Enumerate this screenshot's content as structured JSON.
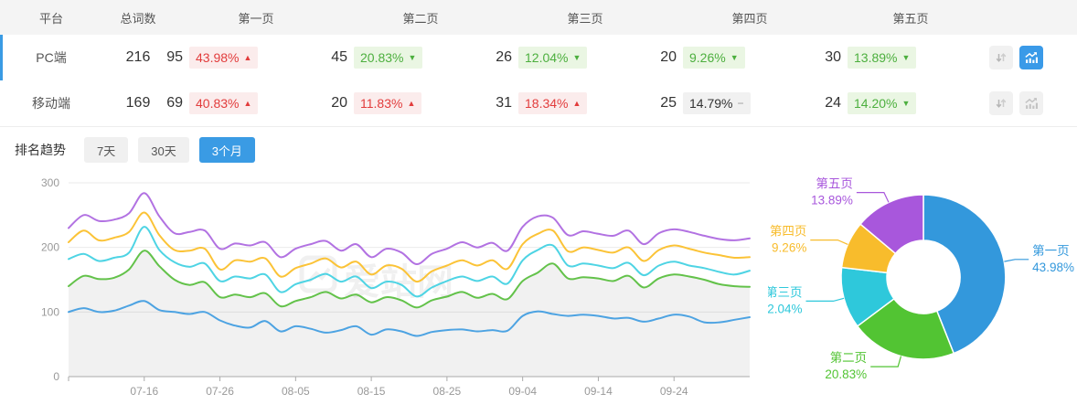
{
  "colors": {
    "accent": "#3A9BE4",
    "up_red": "#E23C3C",
    "down_green": "#4CAF3E",
    "neutral_gray": "#999999"
  },
  "table": {
    "headers": [
      "平台",
      "总词数",
      "第一页",
      "第二页",
      "第三页",
      "第四页",
      "第五页"
    ],
    "rows": [
      {
        "platform": "PC端",
        "total": "216",
        "selected": true,
        "chart_active": true,
        "pages": [
          {
            "count": "95",
            "pct": "43.98%",
            "dir": "up",
            "tone": "red"
          },
          {
            "count": "45",
            "pct": "20.83%",
            "dir": "down",
            "tone": "green"
          },
          {
            "count": "26",
            "pct": "12.04%",
            "dir": "down",
            "tone": "green"
          },
          {
            "count": "20",
            "pct": "9.26%",
            "dir": "down",
            "tone": "green"
          },
          {
            "count": "30",
            "pct": "13.89%",
            "dir": "down",
            "tone": "green"
          }
        ]
      },
      {
        "platform": "移动端",
        "total": "169",
        "selected": false,
        "chart_active": false,
        "pages": [
          {
            "count": "69",
            "pct": "40.83%",
            "dir": "up",
            "tone": "red"
          },
          {
            "count": "20",
            "pct": "11.83%",
            "dir": "up",
            "tone": "red"
          },
          {
            "count": "31",
            "pct": "18.34%",
            "dir": "up",
            "tone": "red"
          },
          {
            "count": "25",
            "pct": "14.79%",
            "dir": "flat",
            "tone": "gray"
          },
          {
            "count": "24",
            "pct": "14.20%",
            "dir": "down",
            "tone": "green"
          }
        ]
      }
    ],
    "icons": {
      "sort": "sort-arrows-icon",
      "trend": "trend-chart-icon"
    }
  },
  "trend": {
    "label": "排名趋势",
    "tabs": [
      {
        "label": "7天",
        "active": false
      },
      {
        "label": "30天",
        "active": false
      },
      {
        "label": "3个月",
        "active": true
      }
    ]
  },
  "watermark": "爱站网",
  "chart_data": [
    {
      "type": "line",
      "title": "排名趋势(3个月)",
      "grid": true,
      "ylim": [
        0,
        300
      ],
      "yticks": [
        0,
        100,
        200,
        300
      ],
      "xticks": [
        "07-16",
        "07-26",
        "08-05",
        "08-15",
        "08-25",
        "09-04",
        "09-14",
        "09-24"
      ],
      "x": [
        "07-06",
        "07-08",
        "07-10",
        "07-12",
        "07-14",
        "07-16",
        "07-18",
        "07-20",
        "07-22",
        "07-24",
        "07-26",
        "07-28",
        "07-30",
        "08-01",
        "08-03",
        "08-05",
        "08-07",
        "08-09",
        "08-11",
        "08-13",
        "08-15",
        "08-17",
        "08-19",
        "08-21",
        "08-23",
        "08-25",
        "08-27",
        "08-29",
        "08-31",
        "09-02",
        "09-04",
        "09-06",
        "09-08",
        "09-10",
        "09-12",
        "09-14",
        "09-16",
        "09-18",
        "09-20",
        "09-22",
        "09-24",
        "09-26",
        "09-28",
        "09-30",
        "10-02",
        "10-04"
      ],
      "series": [
        {
          "name": "第一页",
          "color": "#4DA3E2",
          "area": false,
          "values": [
            100,
            106,
            100,
            102,
            110,
            117,
            103,
            100,
            97,
            100,
            87,
            79,
            76,
            86,
            70,
            78,
            74,
            68,
            72,
            78,
            65,
            73,
            70,
            63,
            69,
            72,
            73,
            70,
            72,
            71,
            94,
            101,
            97,
            94,
            96,
            94,
            90,
            91,
            85,
            90,
            96,
            93,
            84,
            84,
            88,
            92
          ]
        },
        {
          "name": "第二页",
          "color": "#63C24A",
          "area": true,
          "values": [
            140,
            156,
            151,
            153,
            166,
            195,
            171,
            150,
            142,
            146,
            123,
            127,
            123,
            129,
            109,
            117,
            123,
            131,
            121,
            127,
            115,
            123,
            118,
            107,
            118,
            124,
            131,
            122,
            128,
            120,
            148,
            161,
            175,
            152,
            154,
            152,
            148,
            156,
            138,
            152,
            158,
            155,
            150,
            143,
            140,
            139
          ]
        },
        {
          "name": "第三页",
          "color": "#4ED4E4",
          "area": false,
          "values": [
            182,
            190,
            179,
            184,
            192,
            232,
            196,
            177,
            170,
            175,
            148,
            155,
            152,
            158,
            131,
            143,
            150,
            159,
            147,
            155,
            137,
            147,
            142,
            124,
            138,
            148,
            155,
            148,
            155,
            144,
            180,
            196,
            203,
            172,
            175,
            172,
            168,
            176,
            157,
            172,
            178,
            172,
            168,
            162,
            158,
            164
          ]
        },
        {
          "name": "第四页",
          "color": "#FBC337",
          "area": false,
          "values": [
            208,
            226,
            211,
            215,
            224,
            254,
            219,
            196,
            195,
            198,
            166,
            180,
            178,
            183,
            155,
            168,
            175,
            183,
            169,
            178,
            158,
            172,
            167,
            147,
            163,
            172,
            180,
            172,
            180,
            167,
            205,
            221,
            226,
            194,
            200,
            196,
            192,
            200,
            179,
            196,
            203,
            198,
            192,
            188,
            184,
            185
          ]
        },
        {
          "name": "第五页",
          "color": "#B272E2",
          "area": false,
          "values": [
            230,
            250,
            241,
            243,
            253,
            284,
            248,
            222,
            224,
            226,
            198,
            206,
            203,
            208,
            185,
            198,
            205,
            210,
            195,
            205,
            185,
            198,
            192,
            174,
            190,
            198,
            208,
            200,
            207,
            195,
            232,
            248,
            246,
            219,
            225,
            221,
            218,
            226,
            205,
            222,
            228,
            224,
            218,
            213,
            211,
            214
          ]
        }
      ]
    },
    {
      "type": "pie",
      "donut": true,
      "slices": [
        {
          "label": "第一页",
          "pct": 43.98,
          "color": "#3398DC"
        },
        {
          "label": "第二页",
          "pct": 20.83,
          "color": "#52C433"
        },
        {
          "label": "第三页",
          "pct": 12.04,
          "color": "#2EC8DB"
        },
        {
          "label": "第四页",
          "pct": 9.26,
          "color": "#F8BC2C"
        },
        {
          "label": "第五页",
          "pct": 13.89,
          "color": "#A857DC"
        }
      ]
    }
  ]
}
